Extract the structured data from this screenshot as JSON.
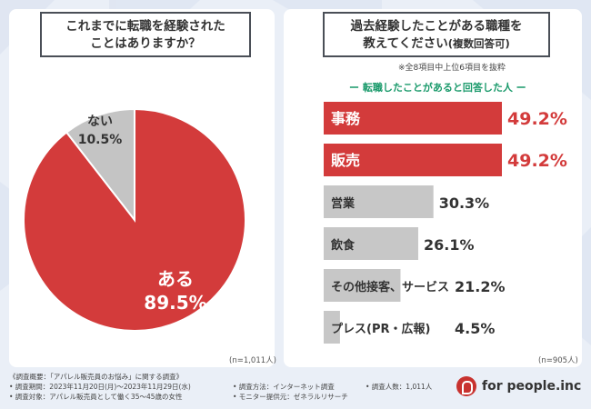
{
  "left": {
    "question_line1": "これまでに転職を経験された",
    "question_line2": "ことはありますか？",
    "n_note": "(n=1,011人)"
  },
  "right": {
    "question_line1": "過去経験したことがある職種を",
    "question_line2": "教えてください",
    "question_suffix": "(複数回答可)",
    "note": "※全8項目中上位6項目を抜粋",
    "subtitle": "ー 転職したことがあると回答した人 ー",
    "n_note": "(n=905人)"
  },
  "colors": {
    "accent": "#d33b3b",
    "gray": "#c4c4c4",
    "panel_border": "#4a4f57",
    "subtitle_green": "#1a9a6b",
    "bg": "#e9eef7"
  },
  "chart_data": [
    {
      "type": "pie",
      "labels": [
        "ある",
        "ない"
      ],
      "values": [
        89.5,
        10.5
      ],
      "display": [
        "89.5%",
        "10.5%"
      ],
      "colors": [
        "#d33b3b",
        "#c4c4c4"
      ]
    },
    {
      "type": "bar",
      "orientation": "horizontal",
      "categories": [
        "事務",
        "販売",
        "営業",
        "飲食",
        "その他接客、サービス",
        "プレス(PR・広報)"
      ],
      "values": [
        49.2,
        49.2,
        30.3,
        26.1,
        21.2,
        4.5
      ],
      "display": [
        "49.2%",
        "49.2%",
        "30.3%",
        "26.1%",
        "21.2%",
        "4.5%"
      ],
      "highlight": [
        true,
        true,
        false,
        false,
        false,
        false
      ]
    }
  ],
  "footer": {
    "line1": "《調査概要：「アパレル販売員のお悩み」に関する調査》",
    "line2a": "• 調査期間：2023年11月20日(月)〜2023年11月29日(水)",
    "line2b": "• 調査方法：インターネット調査",
    "line2c": "• 調査人数：1,011人",
    "line3a": "• 調査対象：アパレル販売員として働く35〜45歳の女性",
    "line3b": "• モニター提供元：ゼネラルリサーチ"
  },
  "logo": {
    "text": "for people.inc"
  }
}
